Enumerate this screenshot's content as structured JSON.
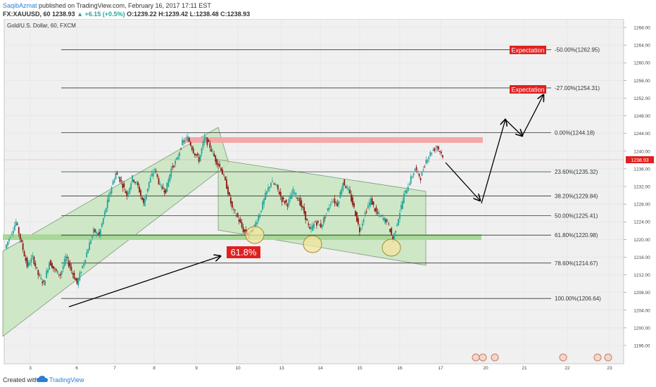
{
  "header": {
    "author": "SaqibAzmat",
    "published_text": " published on TradingView.com, February 16, 2017 17:11 EST",
    "symbol": "FX:XAUUSD, 60",
    "open_label": "1238.93",
    "change": "▲ +6.15 (+0.5%)",
    "ohlc": "O:1239.22 H:1239.42 L:1238.48 C:1238.93"
  },
  "footer": {
    "created_with": "Created with",
    "brand": "TradingView"
  },
  "colors": {
    "up": "#26a69a",
    "down": "#8b1a1a",
    "fib_line": "#333333",
    "channel_fill": "#c8e6c0",
    "resistance": "#f4a7a7",
    "support": "#a8d89a",
    "expectation_bg": "#e02020",
    "price_line": "#e06060"
  },
  "chart_data": {
    "type": "candlestick",
    "title": "Gold/U.S. Dollar, 60, FXCM",
    "current_price": "1238.93",
    "ylim": [
      1194,
      1270
    ],
    "y_ticks": [
      "1268.00",
      "1264.00",
      "1260.00",
      "1256.00",
      "1252.00",
      "1248.00",
      "1244.00",
      "1240.00",
      "1236.00",
      "1232.00",
      "1228.00",
      "1224.00",
      "1220.00",
      "1216.00",
      "1212.00",
      "1208.00",
      "1204.00",
      "1200.00",
      "1196.00"
    ],
    "x_ticks": [
      "3",
      "6",
      "7",
      "8",
      "9",
      "10",
      "13",
      "14",
      "15",
      "16",
      "17",
      "20",
      "21",
      "22",
      "23"
    ],
    "fib_levels": [
      {
        "label": "-50.00%(1262.95)",
        "value": 1262.95
      },
      {
        "label": "-27.00%(1254.31)",
        "value": 1254.31
      },
      {
        "label": "0.00%(1244.18)",
        "value": 1244.18
      },
      {
        "label": "23.60%(1235.32)",
        "value": 1235.32
      },
      {
        "label": "38.20%(1229.84)",
        "value": 1229.84
      },
      {
        "label": "50.00%(1225.41)",
        "value": 1225.41
      },
      {
        "label": "61.80%(1220.98)",
        "value": 1220.98
      },
      {
        "label": "78.60%(1214.67)",
        "value": 1214.67
      },
      {
        "label": "100.00%(1206.64)",
        "value": 1206.64
      }
    ],
    "annotations": {
      "expectation_1": "Expectation",
      "expectation_2": "Expectation",
      "fib_callout": "61.8%"
    },
    "price_path": [
      1218,
      1221,
      1224,
      1219,
      1214,
      1216,
      1212,
      1210,
      1215,
      1213,
      1212,
      1216,
      1213,
      1210,
      1214,
      1218,
      1222,
      1221,
      1226,
      1231,
      1235,
      1233,
      1230,
      1234,
      1232,
      1228,
      1233,
      1236,
      1232,
      1231,
      1236,
      1238,
      1242,
      1243,
      1240,
      1238,
      1243,
      1241,
      1238,
      1236,
      1232,
      1227,
      1225,
      1222,
      1221,
      1223,
      1226,
      1230,
      1233,
      1232,
      1229,
      1228,
      1231,
      1229,
      1226,
      1222,
      1224,
      1223,
      1226,
      1229,
      1228,
      1233,
      1231,
      1227,
      1222,
      1226,
      1229,
      1226,
      1225,
      1224,
      1220,
      1225,
      1230,
      1233,
      1236,
      1234,
      1238,
      1240,
      1241,
      1239
    ]
  }
}
